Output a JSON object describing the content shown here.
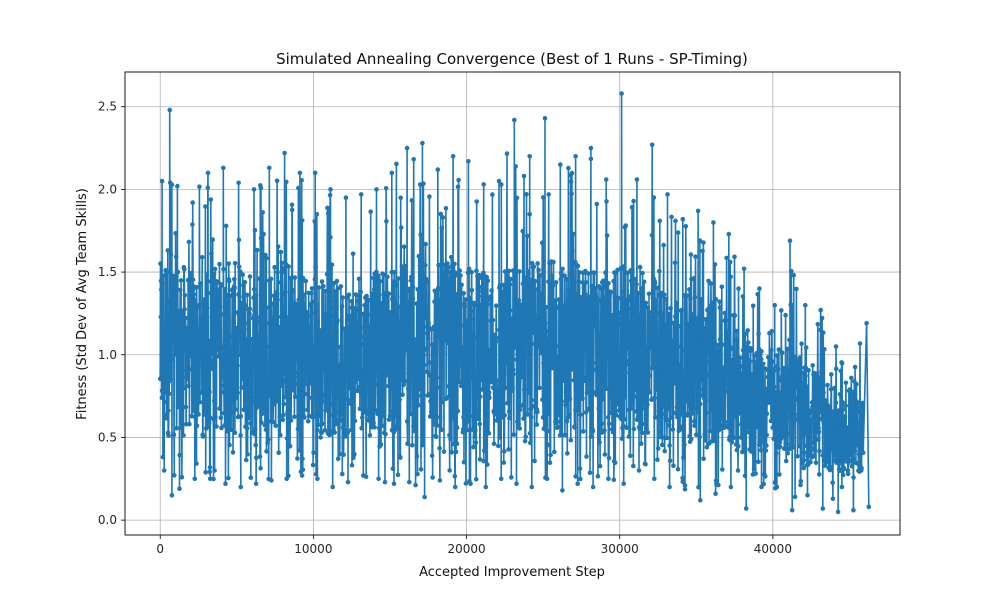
{
  "chart_data": {
    "type": "line",
    "title": "Simulated Annealing Convergence (Best of 1 Runs - SP-Timing)",
    "xlabel": "Accepted Improvement Step",
    "ylabel": "Fitness (Std Dev of Avg Team Skills)",
    "xlim": [
      -2300,
      48300
    ],
    "ylim": [
      -0.09,
      2.71
    ],
    "xticks": [
      0,
      10000,
      20000,
      30000,
      40000
    ],
    "xtick_labels": [
      "0",
      "10000",
      "20000",
      "30000",
      "40000"
    ],
    "yticks": [
      0.0,
      0.5,
      1.0,
      1.5,
      2.0,
      2.5
    ],
    "ytick_labels": [
      "0.0",
      "0.5",
      "1.0",
      "1.5",
      "2.0",
      "2.5"
    ],
    "grid": true,
    "marker": "o",
    "color": "#1f77b4",
    "series": [
      {
        "x": [
          0,
          500,
          1000,
          2000,
          3000,
          4000,
          5000,
          6000,
          7000,
          8000,
          9000,
          10000,
          11000,
          12000,
          13000,
          14000,
          15000,
          16000,
          17000,
          18000,
          19000,
          20000,
          21000,
          22000,
          23000,
          24000,
          25000,
          26000,
          27000,
          28000,
          29000,
          30000,
          31000,
          32000,
          33000,
          34000,
          35000,
          36000,
          37000,
          38000,
          39000,
          40000,
          41000,
          42000,
          43000,
          44000,
          45000,
          46000
        ],
        "upper": [
          2.05,
          2.48,
          2.02,
          1.92,
          2.1,
          2.13,
          2.04,
          2.0,
          2.13,
          2.22,
          2.1,
          2.1,
          2.0,
          1.95,
          1.97,
          2.0,
          2.1,
          2.25,
          2.28,
          2.12,
          2.2,
          2.17,
          2.03,
          2.05,
          2.42,
          2.2,
          2.43,
          2.15,
          2.2,
          2.25,
          2.06,
          2.58,
          2.06,
          2.27,
          1.97,
          1.82,
          1.87,
          1.8,
          1.73,
          1.52,
          1.4,
          1.3,
          1.69,
          1.3,
          1.27,
          1.05,
          0.86,
          1.19
        ],
        "lower": [
          0.3,
          0.15,
          0.19,
          0.25,
          0.25,
          0.22,
          0.2,
          0.22,
          0.24,
          0.25,
          0.27,
          0.25,
          0.2,
          0.23,
          0.27,
          0.25,
          0.22,
          0.23,
          0.14,
          0.24,
          0.2,
          0.22,
          0.2,
          0.25,
          0.22,
          0.2,
          0.25,
          0.18,
          0.22,
          0.2,
          0.25,
          0.22,
          0.3,
          0.25,
          0.2,
          0.21,
          0.12,
          0.16,
          0.2,
          0.07,
          0.2,
          0.2,
          0.06,
          0.15,
          0.07,
          0.05,
          0.06,
          0.08
        ],
        "q_hi": [
          1.55,
          1.7,
          1.6,
          1.5,
          1.5,
          1.6,
          1.55,
          1.5,
          1.55,
          1.6,
          1.5,
          1.5,
          1.45,
          1.45,
          1.45,
          1.5,
          1.55,
          1.6,
          1.6,
          1.55,
          1.55,
          1.55,
          1.5,
          1.5,
          1.55,
          1.55,
          1.6,
          1.55,
          1.55,
          1.55,
          1.5,
          1.55,
          1.5,
          1.5,
          1.4,
          1.35,
          1.4,
          1.35,
          1.3,
          1.2,
          1.05,
          1.0,
          1.1,
          0.95,
          0.9,
          0.8,
          0.7,
          0.75
        ],
        "q_lo": [
          0.55,
          0.5,
          0.55,
          0.55,
          0.5,
          0.55,
          0.5,
          0.5,
          0.55,
          0.55,
          0.55,
          0.55,
          0.5,
          0.5,
          0.55,
          0.55,
          0.5,
          0.55,
          0.5,
          0.55,
          0.5,
          0.5,
          0.5,
          0.55,
          0.5,
          0.5,
          0.55,
          0.5,
          0.5,
          0.5,
          0.5,
          0.5,
          0.5,
          0.5,
          0.45,
          0.45,
          0.45,
          0.45,
          0.45,
          0.4,
          0.4,
          0.4,
          0.4,
          0.35,
          0.3,
          0.3,
          0.25,
          0.3
        ]
      }
    ],
    "x_end": 45900
  }
}
